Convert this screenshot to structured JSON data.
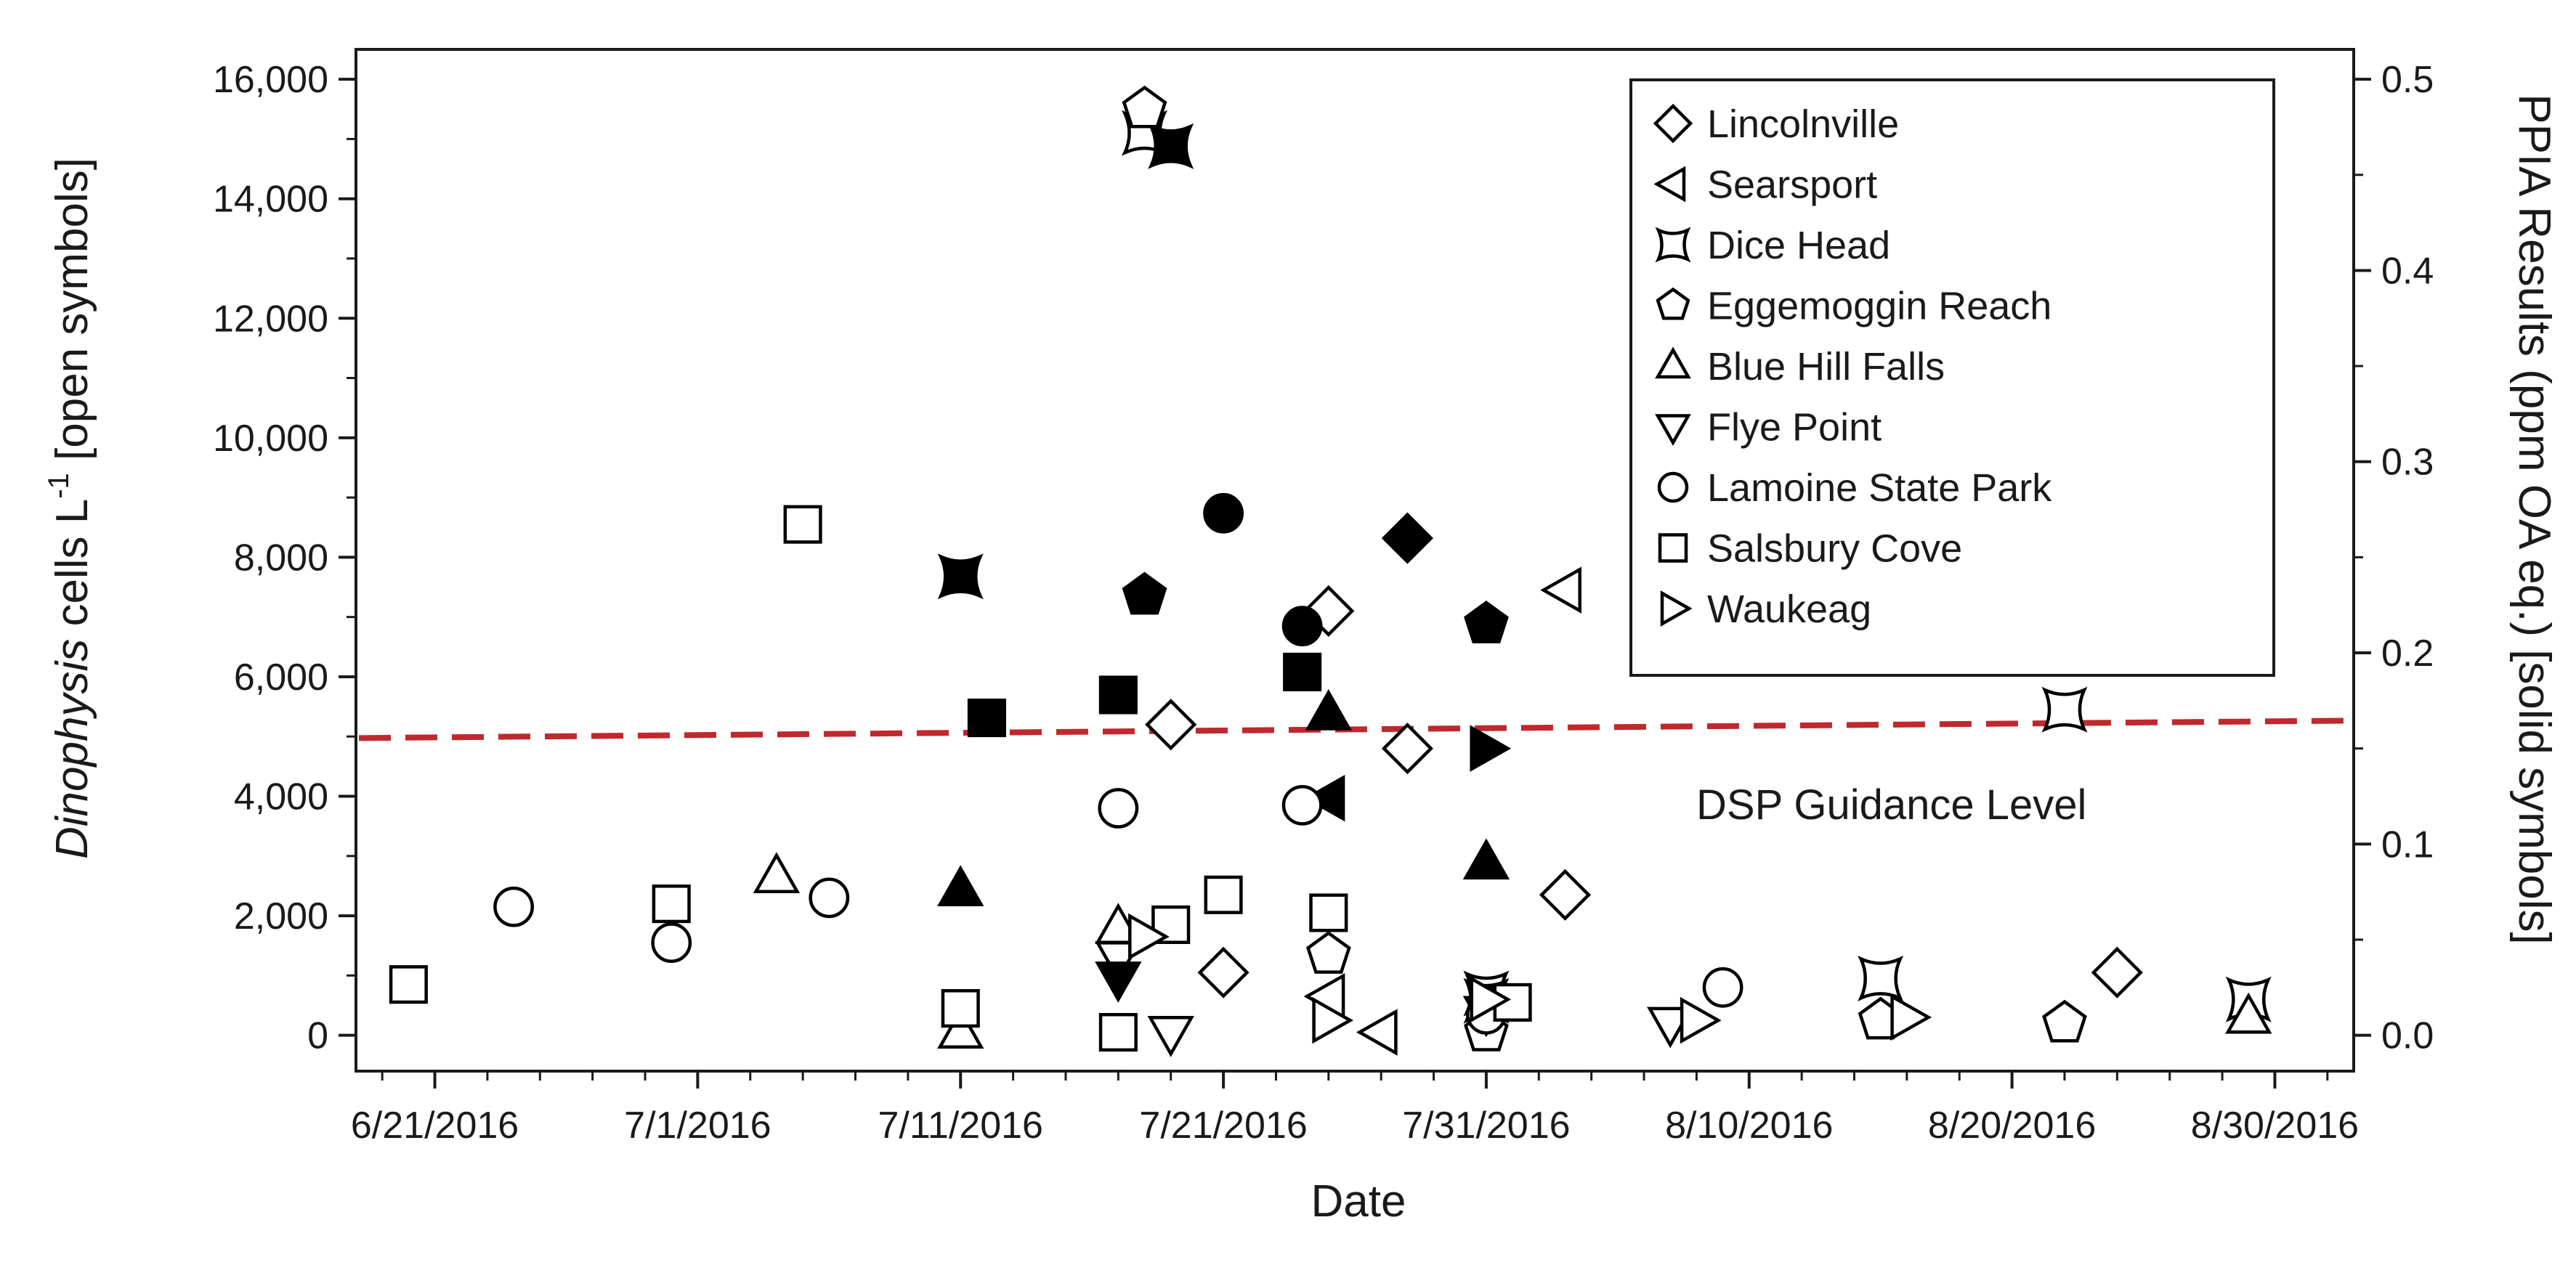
{
  "chart_data": {
    "type": "scatter",
    "title": "",
    "xlabel": "Date",
    "ylabel_italic": "Dinophysis",
    "ylabel_main": " cells L",
    "ylabel_sup": "-1",
    "ylabel_tail": " [open symbols]",
    "y2label": "PPIA Results (ppm OA eq.) [solid symbols]",
    "xlim": [
      "2016-06-18",
      "2016-09-02"
    ],
    "ylim": [
      -600,
      16500
    ],
    "y2lim": [
      -0.01875,
      0.515625
    ],
    "x_tick_labels": [
      "6/21/2016",
      "7/1/2016",
      "7/11/2016",
      "7/21/2016",
      "7/31/2016",
      "8/10/2016",
      "8/20/2016",
      "8/30/2016"
    ],
    "y_tick_labels": [
      "0",
      "2,000",
      "4,000",
      "6,000",
      "8,000",
      "10,000",
      "12,000",
      "14,000",
      "16,000"
    ],
    "y2_tick_labels": [
      "0.0",
      "0.1",
      "0.2",
      "0.3",
      "0.4",
      "0.5"
    ],
    "guidance_line": {
      "label": "DSP Guidance Level",
      "y2": 0.16,
      "color": "#c0282d"
    },
    "legend_position": "top-right",
    "series": [
      {
        "name": "Lincolnville",
        "marker": "diamond",
        "cells": [
          [
            "2016-07-19",
            5200
          ],
          [
            "2016-07-21",
            1050
          ],
          [
            "2016-07-25",
            7100
          ],
          [
            "2016-07-28",
            4800
          ],
          [
            "2016-08-03",
            2350
          ],
          [
            "2016-08-24",
            1050
          ]
        ],
        "ppia": [
          [
            "2016-07-28",
            0.26
          ]
        ]
      },
      {
        "name": "Searsport",
        "marker": "triangle-left",
        "cells": [
          [
            "2016-07-25",
            650
          ],
          [
            "2016-07-27",
            50
          ],
          [
            "2016-08-03",
            7450
          ]
        ],
        "ppia": [
          [
            "2016-07-25",
            0.124
          ]
        ]
      },
      {
        "name": "Dice Head",
        "marker": "star4",
        "cells": [
          [
            "2016-07-18",
            15100
          ],
          [
            "2016-07-31",
            700
          ],
          [
            "2016-08-15",
            950
          ],
          [
            "2016-08-22",
            5450
          ],
          [
            "2016-08-29",
            600
          ]
        ],
        "ppia": [
          [
            "2016-07-11",
            0.24
          ],
          [
            "2016-07-19",
            0.465
          ],
          [
            "2016-07-31",
            0.018
          ]
        ]
      },
      {
        "name": "Eggemoggin Reach",
        "marker": "pentagon",
        "cells": [
          [
            "2016-07-18",
            15500
          ],
          [
            "2016-07-25",
            1350
          ],
          [
            "2016-07-31",
            50
          ],
          [
            "2016-08-15",
            250
          ],
          [
            "2016-08-22",
            200
          ]
        ],
        "ppia": [
          [
            "2016-07-18",
            0.23
          ],
          [
            "2016-07-31",
            0.215
          ]
        ]
      },
      {
        "name": "Blue Hill Falls",
        "marker": "triangle-up",
        "cells": [
          [
            "2016-07-04",
            2650
          ],
          [
            "2016-07-11",
            50
          ],
          [
            "2016-07-17",
            1800
          ],
          [
            "2016-08-29",
            300
          ]
        ],
        "ppia": [
          [
            "2016-07-11",
            0.076
          ],
          [
            "2016-07-25",
            0.168
          ],
          [
            "2016-07-31",
            0.09
          ]
        ]
      },
      {
        "name": "Flye Point",
        "marker": "triangle-down",
        "cells": [
          [
            "2016-07-17",
            1300
          ],
          [
            "2016-07-19",
            50
          ],
          [
            "2016-08-07",
            200
          ]
        ],
        "ppia": [
          [
            "2016-07-17",
            0.03
          ],
          [
            "2016-07-31",
            0.012
          ]
        ]
      },
      {
        "name": "Lamoine State Park",
        "marker": "circle",
        "cells": [
          [
            "2016-06-24",
            2150
          ],
          [
            "2016-06-30",
            1550
          ],
          [
            "2016-07-06",
            2300
          ],
          [
            "2016-07-17",
            3800
          ],
          [
            "2016-07-24",
            3850
          ],
          [
            "2016-07-31",
            350
          ],
          [
            "2016-08-09",
            800
          ]
        ],
        "ppia": [
          [
            "2016-07-21",
            0.273
          ],
          [
            "2016-07-24",
            0.214
          ]
        ]
      },
      {
        "name": "Salsbury Cove",
        "marker": "square",
        "cells": [
          [
            "2016-06-20",
            850
          ],
          [
            "2016-06-30",
            2200
          ],
          [
            "2016-07-05",
            8550
          ],
          [
            "2016-07-11",
            450
          ],
          [
            "2016-07-17",
            50
          ],
          [
            "2016-07-19",
            1850
          ],
          [
            "2016-07-21",
            2350
          ],
          [
            "2016-07-25",
            2050
          ],
          [
            "2016-08-01",
            550
          ]
        ],
        "ppia": [
          [
            "2016-07-12",
            0.166
          ],
          [
            "2016-07-17",
            0.178
          ],
          [
            "2016-07-24",
            0.19
          ]
        ]
      },
      {
        "name": "Waukeag",
        "marker": "triangle-right",
        "cells": [
          [
            "2016-07-18",
            1650
          ],
          [
            "2016-07-25",
            250
          ],
          [
            "2016-07-31",
            600
          ],
          [
            "2016-08-08",
            250
          ],
          [
            "2016-08-16",
            300
          ]
        ],
        "ppia": [
          [
            "2016-07-31",
            0.15
          ]
        ]
      }
    ]
  }
}
